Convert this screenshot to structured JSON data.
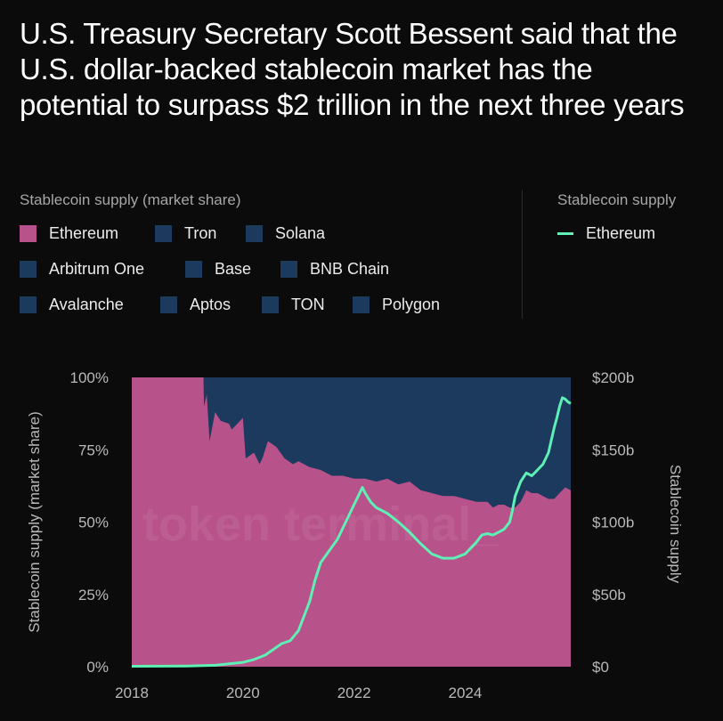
{
  "title": "U.S. Treasury Secretary Scott Bessent said that the U.S. dollar-backed stablecoin market has the potential to surpass $2 trillion in the next three years",
  "legend": {
    "left_title": "Stablecoin supply (market share)",
    "right_title": "Stablecoin supply",
    "items": [
      {
        "label": "Ethereum",
        "color": "#b8528a"
      },
      {
        "label": "Tron",
        "color": "#1b3a5e"
      },
      {
        "label": "Solana",
        "color": "#1b3a5e"
      },
      {
        "label": "Arbitrum One",
        "color": "#1b3a5e"
      },
      {
        "label": "Base",
        "color": "#1b3a5e"
      },
      {
        "label": "BNB Chain",
        "color": "#1b3a5e"
      },
      {
        "label": "Avalanche",
        "color": "#1b3a5e"
      },
      {
        "label": "Aptos",
        "color": "#1b3a5e"
      },
      {
        "label": "TON",
        "color": "#1b3a5e"
      },
      {
        "label": "Polygon",
        "color": "#1b3a5e"
      }
    ],
    "line_items": [
      {
        "label": "Ethereum",
        "color": "#5ef0b4"
      }
    ]
  },
  "watermark": "token terminal_",
  "chart_data": {
    "type": "area",
    "x_ticks": [
      "2018",
      "2020",
      "2022",
      "2024"
    ],
    "y_left": {
      "label": "Stablecoin supply (market share)",
      "ticks": [
        "0%",
        "25%",
        "50%",
        "75%",
        "100%"
      ],
      "range": [
        0,
        100
      ]
    },
    "y_right": {
      "label": "Stablecoin supply",
      "ticks": [
        "$0",
        "$50b",
        "$100b",
        "$150b",
        "$200b"
      ],
      "range": [
        0,
        200
      ]
    },
    "x_range": [
      2018.0,
      2025.9
    ],
    "series": [
      {
        "name": "Ethereum",
        "kind": "area",
        "axis": "left",
        "color": "#b8528a",
        "x": [
          2018.0,
          2019.29,
          2019.3,
          2019.35,
          2019.4,
          2019.5,
          2019.6,
          2019.75,
          2019.8,
          2019.9,
          2020.0,
          2020.05,
          2020.2,
          2020.3,
          2020.35,
          2020.45,
          2020.6,
          2020.75,
          2020.9,
          2021.0,
          2021.2,
          2021.4,
          2021.6,
          2021.8,
          2022.0,
          2022.2,
          2022.4,
          2022.6,
          2022.8,
          2023.0,
          2023.2,
          2023.4,
          2023.6,
          2023.8,
          2024.0,
          2024.2,
          2024.4,
          2024.5,
          2024.6,
          2024.7,
          2024.8,
          2024.9,
          2025.0,
          2025.1,
          2025.2,
          2025.3,
          2025.4,
          2025.5,
          2025.6,
          2025.7,
          2025.8,
          2025.9
        ],
        "y": [
          100,
          100,
          90,
          94,
          78,
          88,
          85,
          84,
          82,
          84,
          86,
          72,
          74,
          70,
          72,
          78,
          76,
          72,
          70,
          71,
          69,
          68,
          66,
          66,
          65,
          65,
          64,
          65,
          63,
          64,
          61,
          60,
          59,
          59,
          58,
          57,
          57,
          55,
          56,
          56,
          55,
          55,
          57,
          61,
          60,
          60,
          59,
          58,
          58,
          60,
          62,
          61
        ]
      },
      {
        "name": "Ethereum",
        "kind": "line",
        "axis": "right",
        "color": "#5ef0b4",
        "x": [
          2018.0,
          2019.0,
          2019.5,
          2019.75,
          2020.0,
          2020.2,
          2020.4,
          2020.55,
          2020.7,
          2020.85,
          2021.0,
          2021.1,
          2021.2,
          2021.3,
          2021.4,
          2021.55,
          2021.7,
          2021.85,
          2022.0,
          2022.1,
          2022.15,
          2022.2,
          2022.3,
          2022.4,
          2022.5,
          2022.6,
          2022.8,
          2023.0,
          2023.2,
          2023.4,
          2023.6,
          2023.8,
          2024.0,
          2024.1,
          2024.2,
          2024.3,
          2024.4,
          2024.5,
          2024.6,
          2024.7,
          2024.8,
          2024.85,
          2024.9,
          2025.0,
          2025.1,
          2025.2,
          2025.3,
          2025.4,
          2025.5,
          2025.6,
          2025.65,
          2025.7,
          2025.75,
          2025.8,
          2025.85,
          2025.9
        ],
        "y": [
          0.3,
          0.5,
          1,
          2,
          3,
          5,
          8,
          12,
          16,
          18,
          25,
          35,
          45,
          60,
          72,
          80,
          88,
          100,
          112,
          120,
          124,
          120,
          114,
          110,
          108,
          106,
          100,
          93,
          85,
          78,
          75,
          75,
          78,
          82,
          86,
          91,
          92,
          91,
          93,
          95,
          100,
          108,
          118,
          128,
          134,
          132,
          136,
          140,
          148,
          165,
          172,
          180,
          186,
          185,
          183,
          182
        ]
      }
    ],
    "background_area_color": "#1b3a5e",
    "grid": false
  }
}
